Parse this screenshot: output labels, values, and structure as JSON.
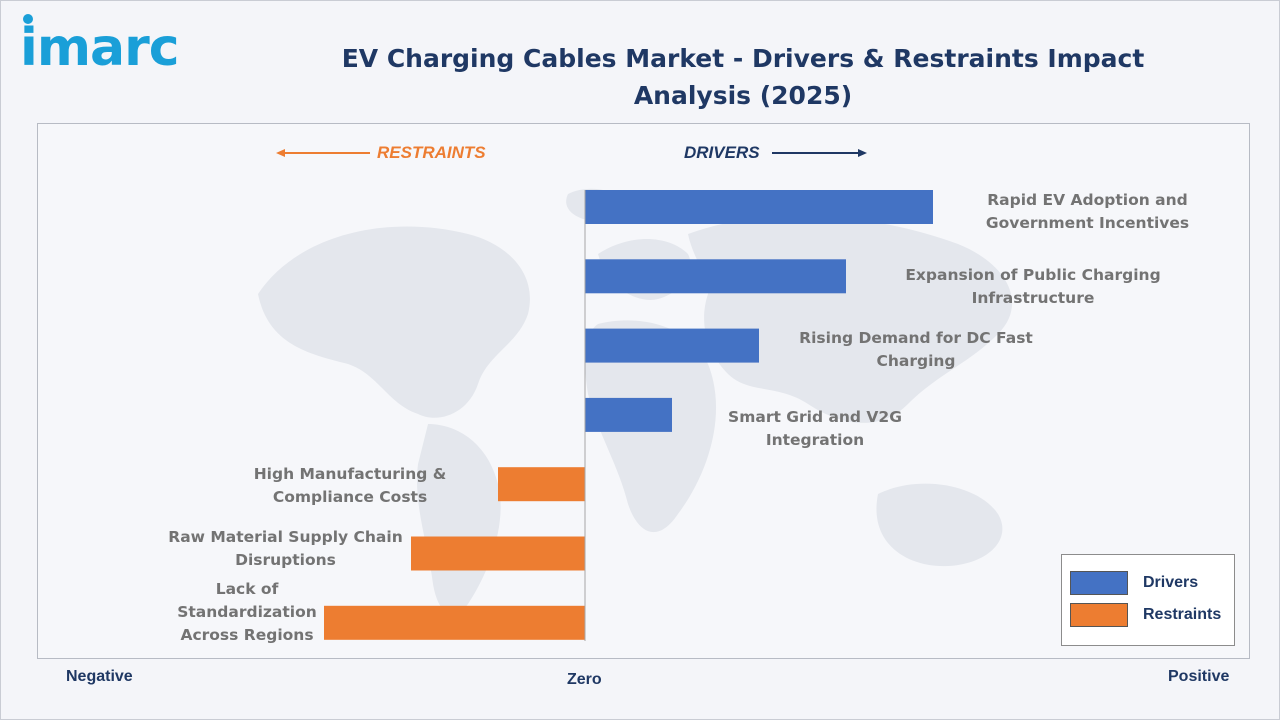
{
  "logo": {
    "text": "imarc",
    "color": "#1a9fd8"
  },
  "title": "EV Charging Cables Market - Drivers & Restraints Impact Analysis (2025)",
  "direction_labels": {
    "restraints": "RESTRAINTS",
    "drivers": "DRIVERS"
  },
  "axis": {
    "negative": "Negative",
    "zero": "Zero",
    "positive": "Positive"
  },
  "legend": [
    {
      "label": "Drivers",
      "color": "#4472c4"
    },
    {
      "label": "Restraints",
      "color": "#ed7d31"
    }
  ],
  "colors": {
    "drivers": "#4472c4",
    "restraints": "#ed7d31",
    "title": "#1f3864",
    "restraints_text": "#ed7d31",
    "drivers_text": "#1f3864"
  },
  "chart_data": {
    "type": "bar",
    "orientation": "horizontal",
    "title": "EV Charging Cables Market - Drivers & Restraints Impact Analysis (2025)",
    "xlabel": "",
    "ylabel": "",
    "xlim": [
      -6,
      8
    ],
    "grid": false,
    "legend_position": "bottom-right",
    "categories": [
      "Rapid EV Adoption and Government Incentives",
      "Expansion of Public Charging Infrastructure",
      "Rising Demand for DC Fast Charging",
      "Smart Grid and V2G Integration",
      "High Manufacturing & Compliance Costs",
      "Raw Material Supply Chain Disruptions",
      "Lack of Standardization Across Regions"
    ],
    "series": [
      {
        "name": "Drivers",
        "values": [
          8,
          6,
          4,
          2,
          null,
          null,
          null
        ]
      },
      {
        "name": "Restraints",
        "values": [
          null,
          null,
          null,
          null,
          -2,
          -4,
          -6
        ]
      }
    ]
  }
}
